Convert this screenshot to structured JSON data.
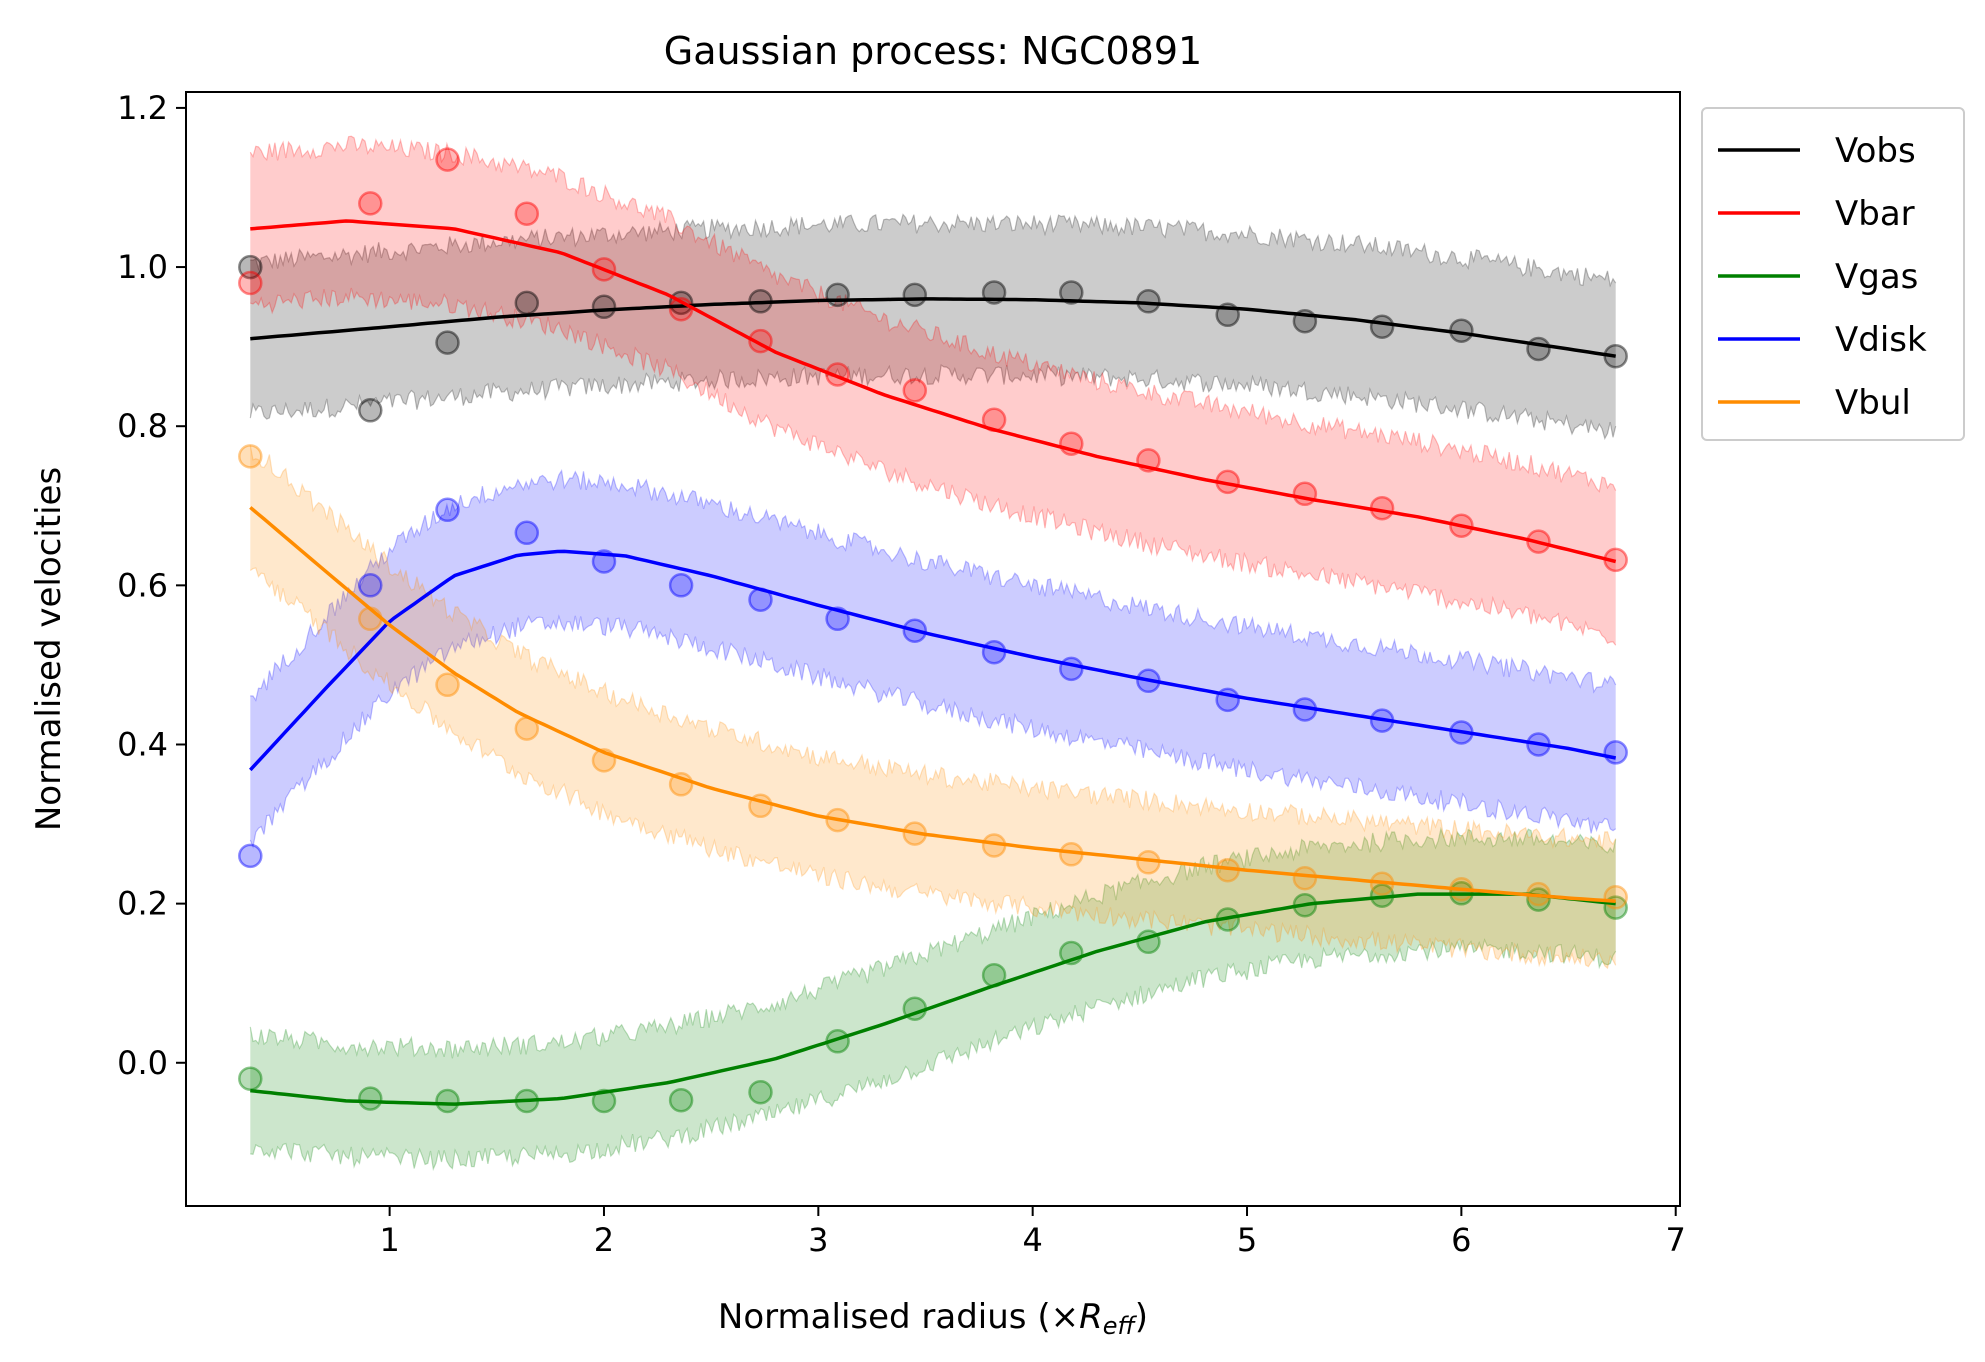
{
  "chart_data": {
    "type": "line",
    "title": "Gaussian process: NGC0891",
    "xlabel_main": "Normalised radius (×",
    "xlabel_sub": "R",
    "xlabel_subscript": "eff",
    "xlabel_close": ")",
    "ylabel": "Normalised velocities",
    "xlim": [
      0.05,
      7.02
    ],
    "ylim": [
      -0.18,
      1.22
    ],
    "xticks": [
      1,
      2,
      3,
      4,
      5,
      6,
      7
    ],
    "xtick_labels": [
      "1",
      "2",
      "3",
      "4",
      "5",
      "6",
      "7"
    ],
    "yticks": [
      0.0,
      0.2,
      0.4,
      0.6,
      0.8,
      1.0,
      1.2
    ],
    "ytick_labels": [
      "0.0",
      "0.2",
      "0.4",
      "0.6",
      "0.8",
      "1.0",
      "1.2"
    ],
    "grid": false,
    "legend_position": "outside-top-right",
    "x": [
      0.35,
      0.91,
      1.27,
      1.64,
      2.0,
      2.36,
      2.73,
      3.09,
      3.45,
      3.82,
      4.18,
      4.54,
      4.91,
      5.27,
      5.63,
      6.0,
      6.36,
      6.72
    ],
    "series": [
      {
        "name": "Vobs",
        "color": "#000000",
        "points": [
          1.0,
          0.82,
          0.905,
          0.955,
          0.95,
          0.955,
          0.957,
          0.965,
          0.965,
          0.968,
          0.968,
          0.957,
          0.94,
          0.932,
          0.925,
          0.92,
          0.897,
          0.888
        ],
        "fit_x": [
          0.35,
          1.0,
          1.5,
          2.0,
          2.5,
          3.0,
          3.5,
          4.0,
          4.5,
          5.0,
          5.5,
          6.0,
          6.5,
          6.72
        ],
        "fit_y": [
          0.91,
          0.925,
          0.937,
          0.946,
          0.953,
          0.958,
          0.96,
          0.959,
          0.955,
          0.947,
          0.934,
          0.917,
          0.897,
          0.888
        ],
        "band": 0.095
      },
      {
        "name": "Vbar",
        "color": "#ff0000",
        "points": [
          0.98,
          1.08,
          1.135,
          1.067,
          0.997,
          0.947,
          0.907,
          0.865,
          0.845,
          0.808,
          0.778,
          0.757,
          0.73,
          0.715,
          0.697,
          0.675,
          0.655,
          0.632
        ],
        "fit_x": [
          0.35,
          0.8,
          1.3,
          1.8,
          2.3,
          2.8,
          3.3,
          3.8,
          4.3,
          4.8,
          5.3,
          5.8,
          6.3,
          6.72
        ],
        "fit_y": [
          1.048,
          1.058,
          1.048,
          1.018,
          0.965,
          0.893,
          0.84,
          0.797,
          0.762,
          0.733,
          0.708,
          0.686,
          0.658,
          0.63
        ],
        "band": 0.095
      },
      {
        "name": "Vgas",
        "color": "#008000",
        "points": [
          -0.02,
          -0.045,
          -0.048,
          -0.048,
          -0.048,
          -0.047,
          -0.037,
          0.027,
          0.068,
          0.11,
          0.138,
          0.152,
          0.18,
          0.198,
          0.21,
          0.213,
          0.205,
          0.195
        ],
        "fit_x": [
          0.35,
          0.8,
          1.3,
          1.8,
          2.3,
          2.8,
          3.3,
          3.8,
          4.3,
          4.8,
          5.3,
          5.8,
          6.3,
          6.72
        ],
        "fit_y": [
          -0.035,
          -0.048,
          -0.052,
          -0.045,
          -0.025,
          0.005,
          0.048,
          0.095,
          0.14,
          0.177,
          0.2,
          0.212,
          0.212,
          0.2
        ],
        "band": 0.07
      },
      {
        "name": "Vdisk",
        "color": "#0000ff",
        "points": [
          0.26,
          0.6,
          0.695,
          0.666,
          0.63,
          0.6,
          0.582,
          0.558,
          0.543,
          0.516,
          0.495,
          0.48,
          0.456,
          0.444,
          0.43,
          0.415,
          0.4,
          0.39
        ],
        "fit_x": [
          0.35,
          0.7,
          1.0,
          1.3,
          1.6,
          1.8,
          2.1,
          2.5,
          3.0,
          3.5,
          4.0,
          4.5,
          5.0,
          5.5,
          6.0,
          6.5,
          6.72
        ],
        "fit_y": [
          0.368,
          0.47,
          0.555,
          0.612,
          0.638,
          0.643,
          0.637,
          0.612,
          0.575,
          0.54,
          0.51,
          0.483,
          0.458,
          0.437,
          0.416,
          0.395,
          0.383
        ],
        "band": 0.09
      },
      {
        "name": "Vbul",
        "color": "#ff8c00",
        "points": [
          0.762,
          0.558,
          0.475,
          0.42,
          0.38,
          0.35,
          0.323,
          0.305,
          0.288,
          0.273,
          0.262,
          0.252,
          0.242,
          0.232,
          0.225,
          0.218,
          0.212,
          0.208
        ],
        "fit_x": [
          0.35,
          0.7,
          1.0,
          1.3,
          1.6,
          2.0,
          2.5,
          3.0,
          3.5,
          4.0,
          4.5,
          5.0,
          5.5,
          6.0,
          6.5,
          6.72
        ],
        "fit_y": [
          0.698,
          0.618,
          0.55,
          0.49,
          0.44,
          0.39,
          0.345,
          0.31,
          0.287,
          0.27,
          0.256,
          0.242,
          0.23,
          0.218,
          0.207,
          0.203
        ],
        "band": 0.075
      }
    ]
  }
}
